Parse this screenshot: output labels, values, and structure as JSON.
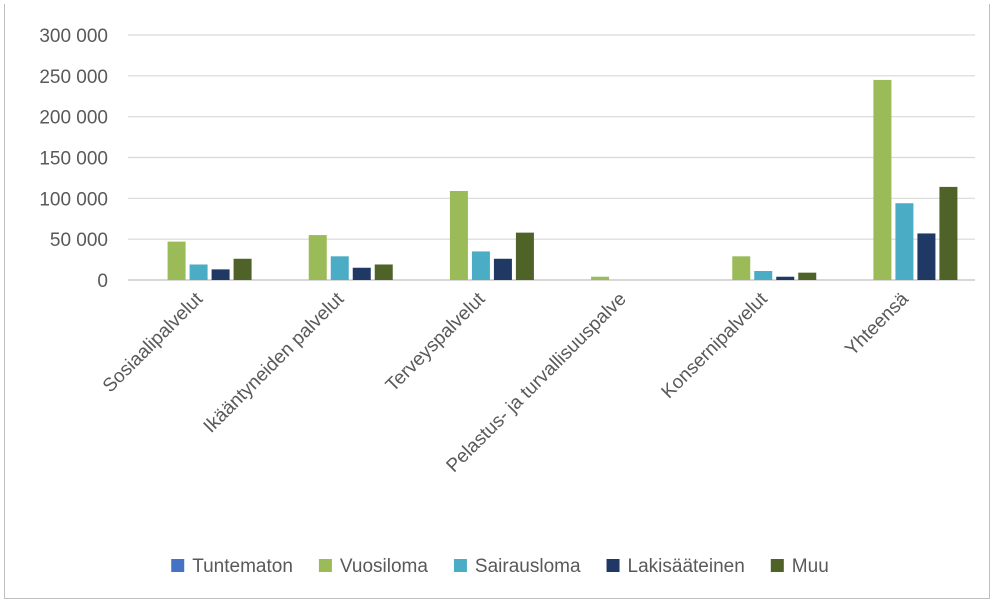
{
  "chart_data": {
    "type": "bar",
    "categories": [
      "Sosiaalipalvelut",
      "Ikääntyneiden palvelut",
      "Terveyspalvelut",
      "Pelastus- ja turvallisuuspalve",
      "Konsernipalvelut",
      "Yhteensä"
    ],
    "series": [
      {
        "name": "Tuntematon",
        "color": "#4472c4",
        "values": [
          0,
          0,
          0,
          0,
          0,
          0
        ]
      },
      {
        "name": "Vuosiloma",
        "color": "#9bbb59",
        "values": [
          47000,
          55000,
          109000,
          4000,
          29000,
          245000
        ]
      },
      {
        "name": "Sairausloma",
        "color": "#4bacc6",
        "values": [
          19000,
          29000,
          35000,
          0,
          11000,
          94000
        ]
      },
      {
        "name": "Lakisääteinen",
        "color": "#1f3864",
        "values": [
          13000,
          15000,
          26000,
          0,
          4000,
          57000
        ]
      },
      {
        "name": "Muu",
        "color": "#4f6228",
        "values": [
          26000,
          19000,
          58000,
          0,
          9000,
          114000
        ]
      }
    ],
    "yticks": [
      "300 000",
      "250 000",
      "200 000",
      "150 000",
      "100 000",
      "50 000",
      "0"
    ],
    "ylim": [
      0,
      300000
    ],
    "grid": true,
    "legend_position": "bottom"
  }
}
